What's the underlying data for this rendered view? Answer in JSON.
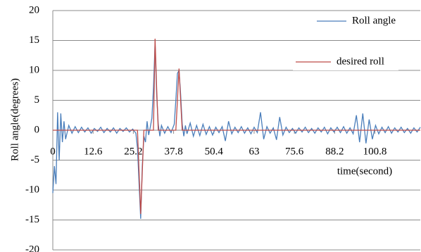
{
  "chart_data": {
    "type": "line",
    "y_label": "Roll angle(degrees)",
    "x_label": "time(second)",
    "x": [
      0,
      0.5,
      1,
      1.5,
      2,
      2.5,
      3,
      3.5,
      4,
      5,
      6,
      7,
      8,
      9,
      10,
      11,
      12,
      13,
      14,
      15,
      16,
      17,
      18,
      19,
      20,
      21,
      22,
      23,
      24,
      25,
      26,
      26.5,
      27,
      27.5,
      28,
      28.5,
      29,
      29.5,
      30,
      30.5,
      31,
      31.5,
      32,
      32.5,
      33,
      33.5,
      34,
      35,
      36,
      37,
      38,
      38.5,
      39,
      39.5,
      40,
      40.5,
      41,
      41.5,
      42,
      43,
      44,
      45,
      46,
      47,
      48,
      49,
      50,
      51,
      52,
      53,
      54,
      55,
      56,
      57,
      58,
      59,
      60,
      61,
      62,
      63,
      64,
      65,
      66,
      67,
      68,
      69,
      70,
      71,
      72,
      73,
      74,
      75,
      76,
      77,
      78,
      79,
      80,
      81,
      82,
      83,
      84,
      85,
      86,
      87,
      88,
      89,
      90,
      91,
      92,
      93,
      94,
      95,
      96,
      97,
      98,
      99,
      100,
      101,
      102,
      103,
      104,
      105,
      106,
      107,
      108,
      109,
      110,
      111,
      112,
      113,
      114,
      115
    ],
    "series": [
      {
        "name": "Roll angle",
        "color": "#4a7ebb",
        "values": [
          -10.5,
          -6,
          -9,
          3,
          -5,
          2.8,
          -2,
          1.5,
          -1.5,
          0.8,
          -0.5,
          0.6,
          -0.4,
          0.5,
          -0.3,
          0.4,
          -0.5,
          0.3,
          -0.2,
          0.5,
          -0.4,
          0.3,
          -0.3,
          0.4,
          -0.5,
          0.3,
          -0.2,
          0.4,
          -0.3,
          0.2,
          -0.5,
          -3,
          -9,
          -14.8,
          -6,
          -1,
          -2,
          1.5,
          -0.8,
          0.5,
          2,
          7,
          14.5,
          6,
          1,
          -1,
          0.8,
          -0.5,
          0.6,
          -0.4,
          1,
          5,
          9.5,
          10,
          6,
          1,
          -1,
          0.8,
          -0.6,
          1.2,
          -1,
          0.8,
          -0.9,
          1,
          -0.7,
          0.6,
          -0.8,
          0.5,
          -0.4,
          0.6,
          -1.8,
          1.5,
          -0.6,
          0.5,
          -0.4,
          0.6,
          -0.5,
          0.4,
          -0.6,
          0.5,
          -0.4,
          3,
          -1.5,
          0.6,
          -0.5,
          0.4,
          -1.6,
          2.2,
          -0.8,
          0.5,
          -0.4,
          0.3,
          -0.5,
          0.4,
          -0.3,
          0.5,
          -0.4,
          0.3,
          -0.5,
          0.4,
          -0.3,
          0.5,
          -0.6,
          0.4,
          -0.3,
          0.5,
          -0.4,
          0.6,
          -0.5,
          0.4,
          -0.6,
          2.5,
          -2,
          2.8,
          -2.2,
          1.8,
          -1.5,
          0.8,
          -0.6,
          0.5,
          -0.4,
          0.6,
          -0.5,
          0.4,
          -0.3,
          0.5,
          -0.4,
          0.3,
          -0.5,
          0.4,
          -0.3,
          0.5
        ]
      },
      {
        "name": "desired roll",
        "color": "#be4b48",
        "values": [
          0,
          0,
          0,
          0,
          0,
          0,
          0,
          0,
          0,
          0,
          0,
          0,
          0,
          0,
          0,
          0,
          0,
          0,
          0,
          0,
          0,
          0,
          0,
          0,
          0,
          0,
          0,
          0,
          0,
          0,
          0,
          0,
          -7,
          -14,
          -7,
          0,
          0,
          0,
          0,
          0,
          0,
          0,
          15.3,
          7,
          0,
          0,
          0,
          0,
          0,
          0,
          0,
          0,
          5,
          10.3,
          5,
          0,
          0,
          0,
          0,
          0,
          0,
          0,
          0,
          0,
          0,
          0,
          0,
          0,
          0,
          0,
          0,
          0,
          0,
          0,
          0,
          0,
          0,
          0,
          0,
          0,
          0,
          0,
          0,
          0,
          0,
          0,
          0,
          0,
          0,
          0,
          0,
          0,
          0,
          0,
          0,
          0,
          0,
          0,
          0,
          0,
          0,
          0,
          0,
          0,
          0,
          0,
          0,
          0,
          0,
          0,
          0,
          0,
          0,
          0,
          0,
          0,
          0,
          0,
          0,
          0,
          0,
          0,
          0,
          0,
          0,
          0,
          0,
          0,
          0,
          0,
          0,
          0
        ]
      }
    ],
    "xlim": [
      0,
      115
    ],
    "xticks": [
      0,
      12.6,
      25.2,
      37.8,
      50.4,
      63,
      75.6,
      88.2,
      100.8
    ],
    "ylim": [
      -20,
      20
    ],
    "yticks": [
      -20,
      -15,
      -10,
      -5,
      0,
      5,
      10,
      15,
      20
    ],
    "grid": true
  }
}
